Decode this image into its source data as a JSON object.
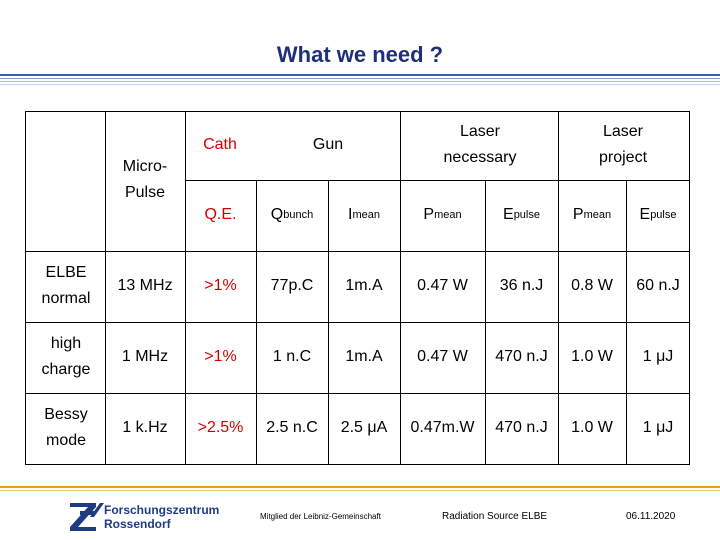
{
  "title": "What we need ?",
  "table": {
    "corner_label": "Micro-Pulse",
    "head_top": {
      "cath": "Cath",
      "gun": "Gun",
      "laser_necessary": "Laser necessary",
      "laser_project": "Laser project"
    },
    "head_sub": {
      "qe": "Q.E.",
      "qbunch_main": "Q",
      "qbunch_sub": "bunch",
      "imean_main": "I",
      "imean_sub": "mean",
      "pmean1_main": "P",
      "pmean1_sub": "mean",
      "epulse1_main": "E",
      "epulse1_sub": "pulse",
      "pmean2_main": "P",
      "pmean2_sub": "mean",
      "epulse2_main": "E",
      "epulse2_sub": "pulse"
    },
    "rows": [
      {
        "label": "ELBE normal",
        "micro": "13 MHz",
        "qe": ">1%",
        "qbunch": "77p.C",
        "imean": "1m.A",
        "pmean1": "0.47 W",
        "epulse1": "36 n.J",
        "pmean2": "0.8 W",
        "epulse2": "60 n.J"
      },
      {
        "label": "high charge",
        "micro": "1 MHz",
        "qe": ">1%",
        "qbunch": "1 n.C",
        "imean": "1m.A",
        "pmean1": "0.47 W",
        "epulse1": "470 n.J",
        "pmean2": "1.0 W",
        "epulse2": "1 μJ"
      },
      {
        "label": "Bessy mode",
        "micro": "1 k.Hz",
        "qe": ">2.5%",
        "qbunch": "2.5 n.C",
        "imean": "2.5 μA",
        "pmean1": "0.47m.W",
        "epulse1": "470 n.J",
        "pmean2": "1.0 W",
        "epulse2": "1 μJ"
      }
    ]
  },
  "footer": {
    "logo_line1": "Forschungszentrum",
    "logo_line2": "Rossendorf",
    "member": "Mitglied der Leibniz-Gemeinschaft",
    "source": "Radiation Source ELBE",
    "date": "06.11.2020"
  },
  "colors": {
    "title": "#1f2f7a",
    "cath_accent": "#d40000",
    "header_band": "#3a5fb0",
    "footer_band": "#e8a21e"
  }
}
